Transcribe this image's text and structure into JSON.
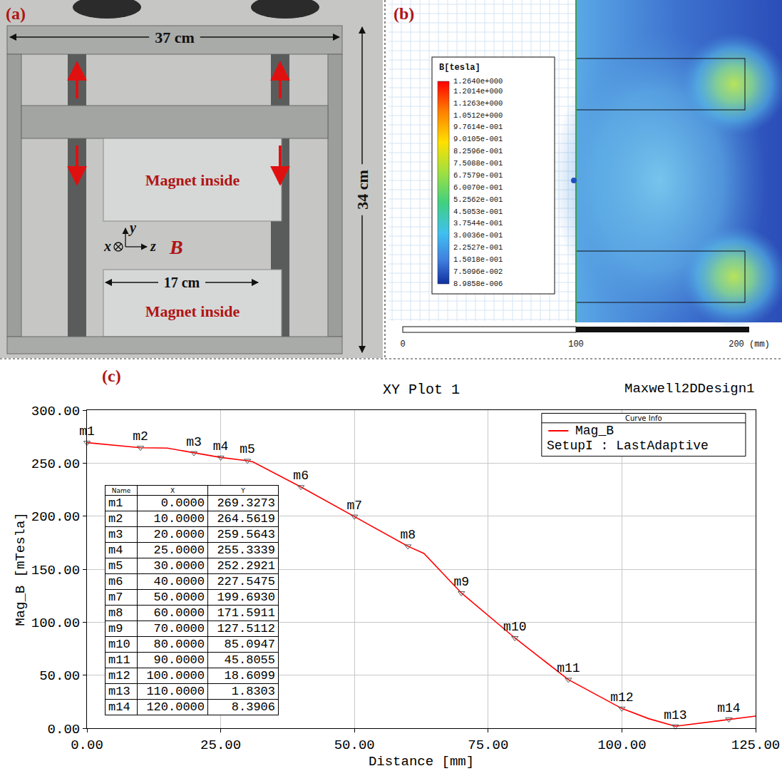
{
  "panel_a": {
    "label": "(a)",
    "frame_width": "37 cm",
    "frame_height": "34 cm",
    "magnet_width": "17 cm",
    "magnet_labels": [
      "Magnet inside",
      "Magnet inside"
    ],
    "axis_labels": {
      "x": "x",
      "y": "y",
      "z": "z"
    },
    "field_label": "B"
  },
  "panel_b": {
    "label": "(b)",
    "colorbar": {
      "title": "B[tesla]",
      "ticks": [
        {
          "value": 1.264,
          "label": "1.2640e+000"
        },
        {
          "value": 1.2014,
          "label": "1.2014e+000"
        },
        {
          "value": 1.1263,
          "label": "1.1263e+000"
        },
        {
          "value": 1.0512,
          "label": "1.0512e+000"
        },
        {
          "value": 0.97614,
          "label": "9.7614e-001"
        },
        {
          "value": 0.90105,
          "label": "9.0105e-001"
        },
        {
          "value": 0.82596,
          "label": "8.2596e-001"
        },
        {
          "value": 0.75088,
          "label": "7.5088e-001"
        },
        {
          "value": 0.67579,
          "label": "6.7579e-001"
        },
        {
          "value": 0.6007,
          "label": "6.0070e-001"
        },
        {
          "value": 0.52562,
          "label": "5.2562e-001"
        },
        {
          "value": 0.45053,
          "label": "4.5053e-001"
        },
        {
          "value": 0.37544,
          "label": "3.7544e-001"
        },
        {
          "value": 0.30036,
          "label": "3.0036e-001"
        },
        {
          "value": 0.22527,
          "label": "2.2527e-001"
        },
        {
          "value": 0.15018,
          "label": "1.5018e-001"
        },
        {
          "value": 0.075096,
          "label": "7.5096e-002"
        },
        {
          "value": 8.9858e-06,
          "label": "8.9858e-006"
        }
      ]
    },
    "scale_bar": {
      "ticks": [
        0,
        100,
        {
          "value": 200,
          "label": "200 (mm)"
        }
      ]
    }
  },
  "chart_data": {
    "type": "line",
    "panel": "(c)",
    "title": "XY Plot 1",
    "annotations": [
      "Maxwell2DDesign1"
    ],
    "x_label": "Distance [mm]",
    "y_label": "Mag_B [mTesla]",
    "xlim": [
      0,
      125
    ],
    "xticks": [
      {
        "value": 0,
        "label": "0.00"
      },
      {
        "value": 25,
        "label": "25.00"
      },
      {
        "value": 50,
        "label": "50.00"
      },
      {
        "value": 75,
        "label": "75.00"
      },
      {
        "value": 100,
        "label": "100.00"
      },
      {
        "value": 125,
        "label": "125.00"
      }
    ],
    "ylim": [
      0,
      300
    ],
    "yticks": [
      {
        "value": 0,
        "label": "0.00"
      },
      {
        "value": 50,
        "label": "50.00"
      },
      {
        "value": 100,
        "label": "100.00"
      },
      {
        "value": 150,
        "label": "150.00"
      },
      {
        "value": 200,
        "label": "200.00"
      },
      {
        "value": 250,
        "label": "250.00"
      },
      {
        "value": 300,
        "label": "300.00"
      }
    ],
    "grid": true,
    "legend": "upper right",
    "legend_title": "Curve Info",
    "marker": "triangle-down",
    "series": [
      {
        "name": "Mag_B",
        "description": "SetupI : LastAdaptive",
        "color": "#ff0000",
        "x": [
          0,
          10,
          15,
          20,
          25,
          30,
          31,
          40,
          50,
          60,
          63,
          70,
          80,
          90,
          100,
          105,
          110,
          120,
          125
        ],
        "values": [
          269.3273,
          264.5619,
          264.2,
          259.5643,
          255.3339,
          252.2921,
          251.2,
          227.5475,
          199.693,
          171.5911,
          164.8,
          127.5112,
          85.0947,
          45.8055,
          18.6099,
          9.0,
          1.8303,
          8.3906,
          11.4
        ]
      }
    ],
    "markers": {
      "columns": [
        "Name",
        "X",
        "Y"
      ],
      "rows": [
        {
          "name": "m1",
          "x": 0,
          "y": 269.3273,
          "x_label": "0.0000",
          "y_label": "269.3273"
        },
        {
          "name": "m2",
          "x": 10,
          "y": 264.5619,
          "x_label": "10.0000",
          "y_label": "264.5619"
        },
        {
          "name": "m3",
          "x": 20,
          "y": 259.5643,
          "x_label": "20.0000",
          "y_label": "259.5643"
        },
        {
          "name": "m4",
          "x": 25,
          "y": 255.3339,
          "x_label": "25.0000",
          "y_label": "255.3339"
        },
        {
          "name": "m5",
          "x": 30,
          "y": 252.2921,
          "x_label": "30.0000",
          "y_label": "252.2921"
        },
        {
          "name": "m6",
          "x": 40,
          "y": 227.5475,
          "x_label": "40.0000",
          "y_label": "227.5475"
        },
        {
          "name": "m7",
          "x": 50,
          "y": 199.693,
          "x_label": "50.0000",
          "y_label": "199.6930"
        },
        {
          "name": "m8",
          "x": 60,
          "y": 171.5911,
          "x_label": "60.0000",
          "y_label": "171.5911"
        },
        {
          "name": "m9",
          "x": 70,
          "y": 127.5112,
          "x_label": "70.0000",
          "y_label": "127.5112"
        },
        {
          "name": "m10",
          "x": 80,
          "y": 85.0947,
          "x_label": "80.0000",
          "y_label": "85.0947"
        },
        {
          "name": "m11",
          "x": 90,
          "y": 45.8055,
          "x_label": "90.0000",
          "y_label": "45.8055"
        },
        {
          "name": "m12",
          "x": 100,
          "y": 18.6099,
          "x_label": "100.0000",
          "y_label": "18.6099"
        },
        {
          "name": "m13",
          "x": 110,
          "y": 1.8303,
          "x_label": "110.0000",
          "y_label": "1.8303"
        },
        {
          "name": "m14",
          "x": 120,
          "y": 8.3906,
          "x_label": "120.0000",
          "y_label": "8.3906"
        }
      ]
    }
  }
}
